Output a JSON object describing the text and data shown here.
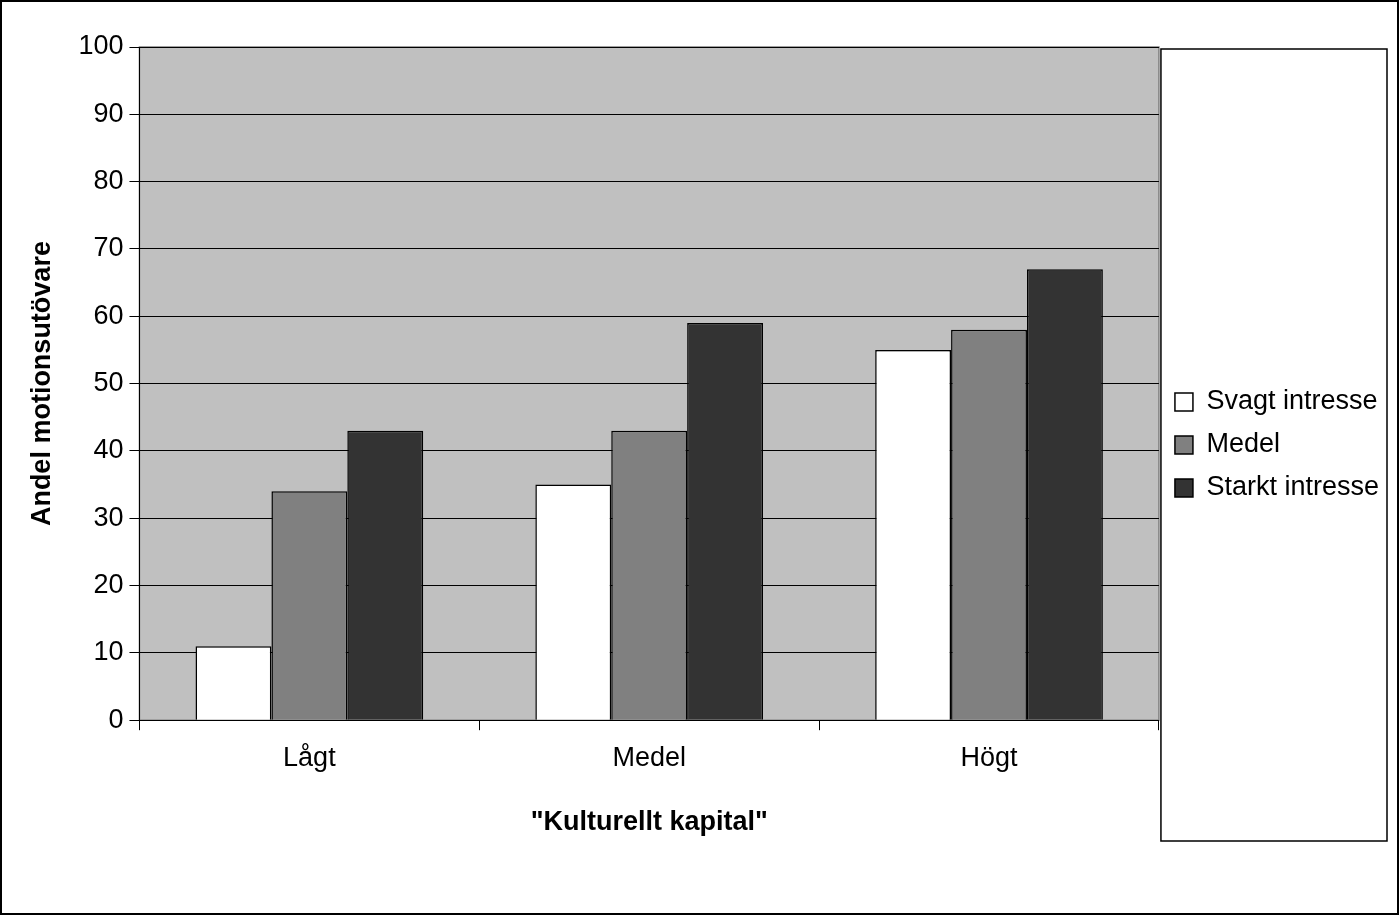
{
  "chart_data": {
    "type": "bar",
    "xlabel": "\"Kulturellt kapital\"",
    "ylabel": "Andel motionsutövare",
    "categories": [
      "Lågt",
      "Medel",
      "Högt"
    ],
    "series": [
      {
        "name": "Svagt intresse",
        "color": "#ffffff",
        "values": [
          11,
          35,
          55
        ]
      },
      {
        "name": "Medel",
        "color": "#808080",
        "values": [
          34,
          43,
          58
        ]
      },
      {
        "name": "Starkt intresse",
        "color": "#333333",
        "values": [
          43,
          59,
          67
        ]
      }
    ],
    "ylim": [
      0,
      100
    ],
    "yticks": [
      0,
      10,
      20,
      30,
      40,
      50,
      60,
      70,
      80,
      90,
      100
    ],
    "grid": "y",
    "legend": "right"
  }
}
